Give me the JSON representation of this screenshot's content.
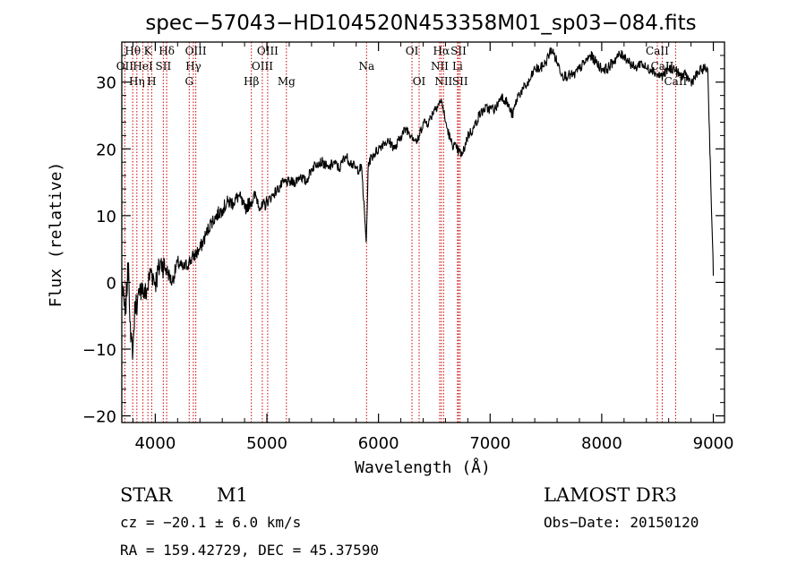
{
  "chart_data": {
    "type": "line",
    "title": "spec−57043−HD104520N453358M01_sp03−084.fits",
    "xlabel": "Wavelength (Å)",
    "ylabel": "Flux (relative)",
    "xlim": [
      3700,
      9100
    ],
    "ylim": [
      -21,
      36
    ],
    "x_ticks": [
      4000,
      5000,
      6000,
      7000,
      8000,
      9000
    ],
    "y_ticks": [
      -20,
      -10,
      0,
      10,
      20,
      30
    ],
    "grid": false,
    "series": [
      {
        "name": "spectrum",
        "x": [
          3700,
          3730,
          3760,
          3780,
          3800,
          3820,
          3840,
          3860,
          3880,
          3900,
          3930,
          3960,
          4000,
          4050,
          4100,
          4150,
          4200,
          4250,
          4300,
          4350,
          4400,
          4450,
          4500,
          4550,
          4600,
          4650,
          4700,
          4750,
          4800,
          4850,
          4900,
          4950,
          5000,
          5050,
          5100,
          5150,
          5200,
          5250,
          5300,
          5350,
          5400,
          5450,
          5500,
          5550,
          5600,
          5650,
          5700,
          5750,
          5800,
          5850,
          5890,
          5910,
          5950,
          6000,
          6050,
          6100,
          6150,
          6200,
          6250,
          6300,
          6350,
          6400,
          6450,
          6500,
          6550,
          6570,
          6600,
          6650,
          6700,
          6750,
          6800,
          6850,
          6900,
          6950,
          7000,
          7050,
          7100,
          7150,
          7200,
          7250,
          7300,
          7350,
          7400,
          7450,
          7500,
          7550,
          7600,
          7650,
          7700,
          7750,
          7800,
          7850,
          7900,
          7950,
          8000,
          8050,
          8100,
          8150,
          8200,
          8250,
          8300,
          8350,
          8400,
          8450,
          8500,
          8550,
          8600,
          8650,
          8700,
          8750,
          8800,
          8850,
          8900,
          8950,
          9000
        ],
        "y": [
          0,
          -5,
          3,
          -9,
          -10,
          -3,
          -3,
          -2,
          0,
          -2,
          -1,
          2,
          0,
          3,
          2,
          0,
          3,
          2,
          3,
          4,
          5,
          7,
          9,
          10,
          11,
          12,
          12,
          13,
          11,
          12,
          13,
          11,
          12,
          13,
          14,
          15,
          15,
          15,
          16,
          15,
          17,
          18,
          18,
          17,
          18,
          17,
          19,
          18,
          17,
          17,
          6,
          18,
          19,
          20,
          21,
          21,
          20,
          22,
          23,
          22,
          21,
          24,
          24,
          26,
          27,
          27,
          24,
          21,
          20,
          19,
          22,
          23,
          25,
          26,
          26,
          26,
          28,
          27,
          25,
          28,
          29,
          30,
          32,
          32,
          33,
          35,
          33,
          31,
          31,
          31,
          32,
          33,
          34,
          33,
          32,
          32,
          33,
          34,
          34,
          33,
          32,
          33,
          32,
          32,
          31,
          31,
          32,
          32,
          31,
          31,
          30,
          31,
          32,
          32,
          1
        ]
      }
    ],
    "spectral_lines": [
      {
        "name": "Hθ",
        "wl": 3798,
        "row": 0
      },
      {
        "name": "OII",
        "wl": 3727,
        "row": 1
      },
      {
        "name": "Hη",
        "wl": 3835,
        "row": 2
      },
      {
        "name": "HeI",
        "wl": 3889,
        "row": 1
      },
      {
        "name": "K",
        "wl": 3934,
        "row": 0
      },
      {
        "name": "H",
        "wl": 3968,
        "row": 2
      },
      {
        "name": "SII",
        "wl": 4072,
        "row": 1
      },
      {
        "name": "Hδ",
        "wl": 4102,
        "row": 0
      },
      {
        "name": "G",
        "wl": 4304,
        "row": 2
      },
      {
        "name": "Hγ",
        "wl": 4341,
        "row": 1
      },
      {
        "name": "OIII",
        "wl": 4363,
        "row": 0
      },
      {
        "name": "Hβ",
        "wl": 4861,
        "row": 2
      },
      {
        "name": "OIII",
        "wl": 4959,
        "row": 1
      },
      {
        "name": "OIII",
        "wl": 5007,
        "row": 0
      },
      {
        "name": "Mg",
        "wl": 5175,
        "row": 2
      },
      {
        "name": "Na",
        "wl": 5893,
        "row": 1
      },
      {
        "name": "OI",
        "wl": 6300,
        "row": 0
      },
      {
        "name": "OI",
        "wl": 6364,
        "row": 2
      },
      {
        "name": "NII",
        "wl": 6548,
        "row": 1
      },
      {
        "name": "Hα",
        "wl": 6563,
        "row": 0
      },
      {
        "name": "NII",
        "wl": 6583,
        "row": 2
      },
      {
        "name": "Li",
        "wl": 6708,
        "row": 1
      },
      {
        "name": "SII",
        "wl": 6717,
        "row": 0
      },
      {
        "name": "SII",
        "wl": 6731,
        "row": 2
      },
      {
        "name": "CaII",
        "wl": 8498,
        "row": 0
      },
      {
        "name": "CaII",
        "wl": 8542,
        "row": 1
      },
      {
        "name": "CaII",
        "wl": 8662,
        "row": 2
      }
    ],
    "colors": {
      "line": "#000000",
      "marker": "#cc0000",
      "axis": "#000000"
    }
  },
  "info": {
    "class_label": "STAR",
    "subclass": "M1",
    "survey": "LAMOST DR3",
    "cz": "cz = −20.1 ± 6.0 km/s",
    "obs_date": "Obs−Date: 20150120",
    "coords": "RA = 159.42729, DEC =  45.37590"
  }
}
